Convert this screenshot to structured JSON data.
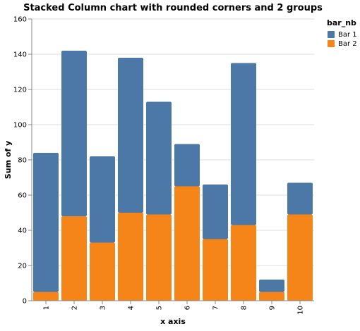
{
  "chart_data": {
    "type": "bar",
    "stacked": true,
    "title": "Stacked Column chart with rounded corners and 2 groups",
    "xlabel": "x axis",
    "ylabel": "Sum of y",
    "ylim": [
      0,
      160
    ],
    "yticks": [
      "0",
      "20",
      "40",
      "60",
      "80",
      "100",
      "120",
      "140",
      "160"
    ],
    "categories": [
      "1",
      "2",
      "3",
      "4",
      "5",
      "6",
      "7",
      "8",
      "9",
      "10"
    ],
    "grid": true,
    "legend": {
      "title": "bar_nb",
      "position": "top-right"
    },
    "series": [
      {
        "name": "Bar 1",
        "color": "#4c78a8",
        "values": [
          79,
          94,
          49,
          88,
          64,
          24,
          31,
          92,
          7,
          18
        ]
      },
      {
        "name": "Bar 2",
        "color": "#f58518",
        "values": [
          5,
          48,
          33,
          50,
          49,
          65,
          35,
          43,
          5,
          49
        ]
      }
    ]
  }
}
